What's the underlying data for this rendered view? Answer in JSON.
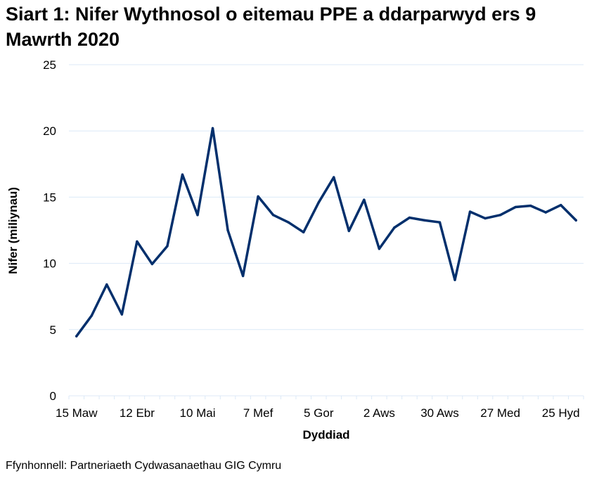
{
  "title": "Siart 1: Nifer Wythnosol o eitemau PPE a ddarparwyd ers 9 Mawrth 2020",
  "source": "Ffynhonnell: Partneriaeth Cydwasanaethau GIG Cymru",
  "chart_data": {
    "type": "line",
    "xlabel": "Dyddiad",
    "ylabel": "Nifer (miliynau)",
    "ylim": [
      0,
      25
    ],
    "yticks": [
      "0",
      "5",
      "10",
      "15",
      "20",
      "25"
    ],
    "grid": true,
    "line_color": "#002f6c",
    "grid_color": "#dce9f7",
    "x_tick_labels": [
      "15 Maw",
      "12 Ebr",
      "10 Mai",
      "7 Mef",
      "5 Gor",
      "2 Aws",
      "30 Aws",
      "27 Med",
      "25 Hyd"
    ],
    "x_label_every": 4,
    "series": [
      {
        "values": [
          4.5,
          6.05,
          8.4,
          6.15,
          11.65,
          9.95,
          11.3,
          16.7,
          13.65,
          20.2,
          12.5,
          9.05,
          15.05,
          13.65,
          13.1,
          12.35,
          14.6,
          16.5,
          12.45,
          14.8,
          11.1,
          12.7,
          13.45,
          13.25,
          13.1,
          8.75,
          13.9,
          13.4,
          13.65,
          14.25,
          14.35,
          13.85,
          14.4,
          13.25
        ]
      }
    ]
  }
}
